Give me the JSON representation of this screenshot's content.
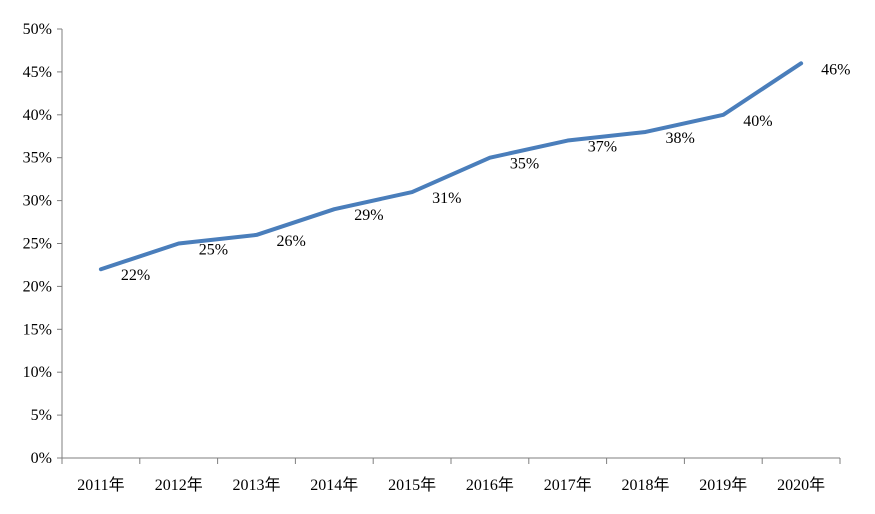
{
  "chart_data": {
    "type": "line",
    "title": "",
    "xlabel": "",
    "ylabel": "",
    "categories": [
      "2011年",
      "2012年",
      "2013年",
      "2014年",
      "2015年",
      "2016年",
      "2017年",
      "2018年",
      "2019年",
      "2020年"
    ],
    "series": [
      {
        "values": [
          22,
          25,
          26,
          29,
          31,
          35,
          37,
          38,
          40,
          46
        ],
        "data_labels": [
          "22%",
          "25%",
          "26%",
          "29%",
          "31%",
          "35%",
          "37%",
          "38%",
          "40%",
          "46%"
        ],
        "color": "#4a7ebb"
      }
    ],
    "ylim": [
      0,
      50
    ],
    "y_ticks": [
      0,
      5,
      10,
      15,
      20,
      25,
      30,
      35,
      40,
      45,
      50
    ],
    "y_tick_labels": [
      "0%",
      "5%",
      "10%",
      "15%",
      "20%",
      "25%",
      "30%",
      "35%",
      "40%",
      "45%",
      "50%"
    ],
    "grid": false,
    "legend": "none",
    "axis_color": "#7f7f7f"
  }
}
